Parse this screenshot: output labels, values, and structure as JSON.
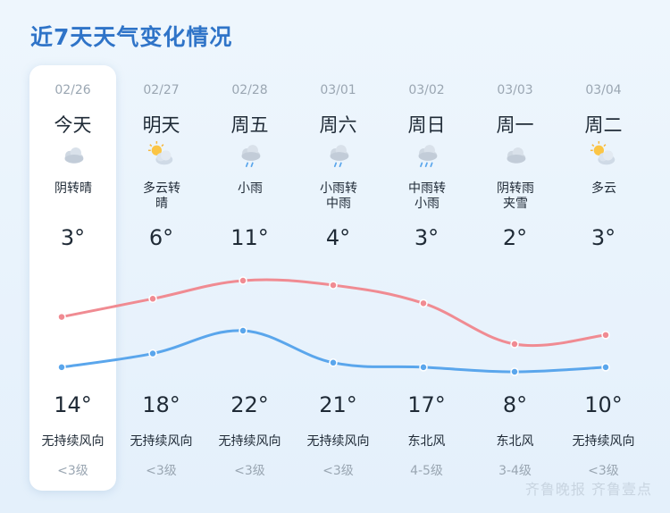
{
  "title": "近7天天气变化情况",
  "watermark": "齐鲁晚报 齐鲁壹点",
  "colors": {
    "title": "#2f74c8",
    "line_red": "#f08b92",
    "line_blue": "#5aa6ec"
  },
  "days": [
    {
      "date": "02/26",
      "name": "今天",
      "icon": "cloudy-icon",
      "cond1": "阴转晴",
      "cond2": "",
      "low": "3°",
      "high": "14°",
      "wind": "无持续风向",
      "level": "<3级"
    },
    {
      "date": "02/27",
      "name": "明天",
      "icon": "partly-cloudy-icon",
      "cond1": "多云转",
      "cond2": "晴",
      "low": "6°",
      "high": "18°",
      "wind": "无持续风向",
      "level": "<3级"
    },
    {
      "date": "02/28",
      "name": "周五",
      "icon": "light-rain-icon",
      "cond1": "小雨",
      "cond2": "",
      "low": "11°",
      "high": "22°",
      "wind": "无持续风向",
      "level": "<3级"
    },
    {
      "date": "03/01",
      "name": "周六",
      "icon": "light-rain-icon",
      "cond1": "小雨转",
      "cond2": "中雨",
      "low": "4°",
      "high": "21°",
      "wind": "无持续风向",
      "level": "<3级"
    },
    {
      "date": "03/02",
      "name": "周日",
      "icon": "moderate-rain-icon",
      "cond1": "中雨转",
      "cond2": "小雨",
      "low": "3°",
      "high": "17°",
      "wind": "东北风",
      "level": "4-5级"
    },
    {
      "date": "03/03",
      "name": "周一",
      "icon": "cloudy-icon",
      "cond1": "阴转雨",
      "cond2": "夹雪",
      "low": "2°",
      "high": "8°",
      "wind": "东北风",
      "level": "3-4级"
    },
    {
      "date": "03/04",
      "name": "周二",
      "icon": "partly-cloudy-icon",
      "cond1": "多云",
      "cond2": "",
      "low": "3°",
      "high": "10°",
      "wind": "无持续风向",
      "level": "<3级"
    }
  ],
  "chart_data": {
    "type": "line",
    "categories": [
      "02/26",
      "02/27",
      "02/28",
      "03/01",
      "03/02",
      "03/03",
      "03/04"
    ],
    "series": [
      {
        "values": [
          14,
          18,
          22,
          21,
          17,
          8,
          10
        ],
        "color": "#f08b92"
      },
      {
        "values": [
          3,
          6,
          11,
          4,
          3,
          2,
          3
        ],
        "color": "#5aa6ec"
      }
    ]
  }
}
